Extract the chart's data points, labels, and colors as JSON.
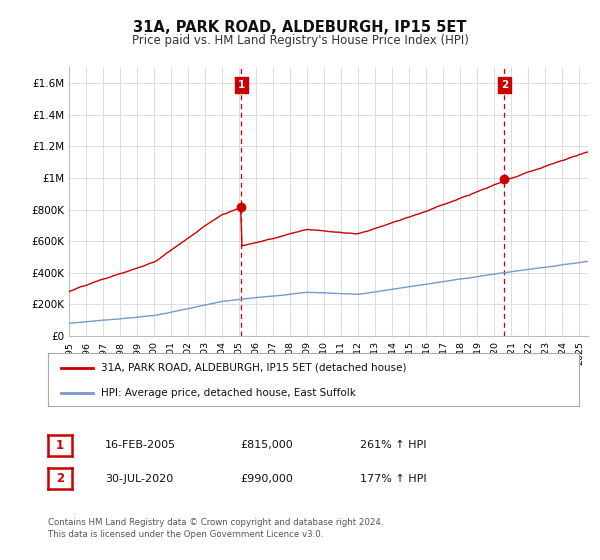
{
  "title": "31A, PARK ROAD, ALDEBURGH, IP15 5ET",
  "subtitle": "Price paid vs. HM Land Registry's House Price Index (HPI)",
  "ylim": [
    0,
    1700000
  ],
  "xlim_start": 1995.0,
  "xlim_end": 2025.5,
  "property_color": "#cc0000",
  "hpi_color": "#7799cc",
  "vline_color": "#cc0000",
  "marker1_x": 2005.12,
  "marker1_y": 815000,
  "marker2_x": 2020.58,
  "marker2_y": 990000,
  "legend_entries": [
    "31A, PARK ROAD, ALDEBURGH, IP15 5ET (detached house)",
    "HPI: Average price, detached house, East Suffolk"
  ],
  "table_rows": [
    [
      "1",
      "16-FEB-2005",
      "£815,000",
      "261% ↑ HPI"
    ],
    [
      "2",
      "30-JUL-2020",
      "£990,000",
      "177% ↑ HPI"
    ]
  ],
  "footnote": "Contains HM Land Registry data © Crown copyright and database right 2024.\nThis data is licensed under the Open Government Licence v3.0.",
  "background_color": "#ffffff",
  "grid_color": "#dddddd",
  "yticks": [
    0,
    200000,
    400000,
    600000,
    800000,
    1000000,
    1200000,
    1400000,
    1600000
  ],
  "ytick_labels": [
    "£0",
    "£200K",
    "£400K",
    "£600K",
    "£800K",
    "£1M",
    "£1.2M",
    "£1.4M",
    "£1.6M"
  ]
}
